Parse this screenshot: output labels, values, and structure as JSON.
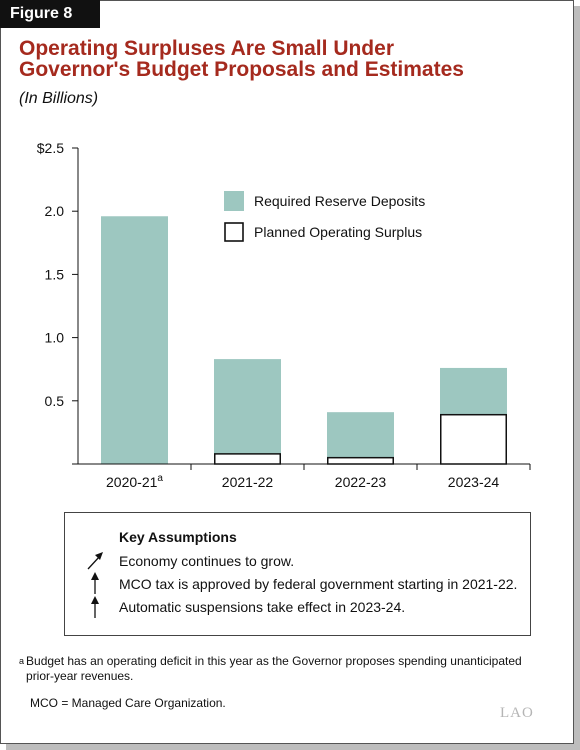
{
  "figure_label": "Figure 8",
  "title_lines": [
    "Operating Surpluses Are Small Under",
    "Governor's Budget Proposals and Estimates"
  ],
  "subtitle": "(In Billions)",
  "colors": {
    "title": "#a52a1e",
    "reserve": "#9dc7c0",
    "surplus_fill": "#ffffff",
    "outline": "#111111"
  },
  "chart_data": {
    "type": "bar",
    "stacked": true,
    "categories": [
      "2020-21",
      "2021-22",
      "2022-23",
      "2023-24"
    ],
    "category_superscripts": [
      "a",
      "",
      "",
      ""
    ],
    "series": [
      {
        "name": "Planned Operating Surplus",
        "values": [
          0,
          0.08,
          0.05,
          0.39
        ]
      },
      {
        "name": "Required Reserve Deposits",
        "values": [
          1.96,
          0.75,
          0.36,
          0.37
        ]
      }
    ],
    "ylim": [
      0,
      2.5
    ],
    "yticks": [
      "",
      "0.5",
      "1.0",
      "1.5",
      "2.0",
      "$2.5"
    ],
    "grid": false,
    "legend_position": "top-right"
  },
  "key_assumptions": {
    "title": "Key Assumptions",
    "items": [
      {
        "icon": "arrow-up-right-icon",
        "text": "Economy continues to grow."
      },
      {
        "icon": "arrow-up-icon",
        "text": "MCO tax is approved by federal government starting in 2021-22."
      },
      {
        "icon": "arrow-up-icon",
        "text": "Automatic suspensions take effect in 2023-24."
      }
    ]
  },
  "footnote": {
    "marker": "a",
    "text": "Budget has an operating deficit in this year as the Governor proposes spending unanticipated prior-year revenues."
  },
  "abbreviation": "MCO = Managed Care Organization.",
  "logo": "LAO"
}
